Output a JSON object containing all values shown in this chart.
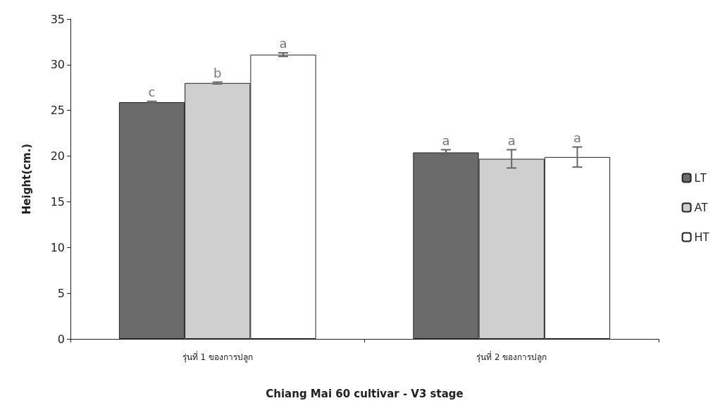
{
  "chart_data": {
    "type": "bar",
    "xlabel": "Chiang Mai 60 cultivar - V3 stage",
    "ylabel": "Height(cm.)",
    "categories": [
      "รุ่นที่ 1 ของการปลูก",
      "รุ่นที่ 2 ของการปลูก"
    ],
    "series": [
      {
        "name": "LT",
        "color": "#6b6b6b",
        "values": [
          25.9,
          20.4
        ],
        "errors": [
          0.1,
          0.3
        ],
        "value_labels": [
          "c",
          "a"
        ]
      },
      {
        "name": "AT",
        "color": "#cfcfcf",
        "values": [
          28.0,
          19.7
        ],
        "errors": [
          0.1,
          1.0
        ],
        "value_labels": [
          "b",
          "a"
        ]
      },
      {
        "name": "HT",
        "color": "#ffffff",
        "values": [
          31.1,
          19.9
        ],
        "errors": [
          0.2,
          1.1
        ],
        "value_labels": [
          "a",
          "a"
        ]
      }
    ],
    "ylim": [
      0,
      35
    ],
    "yticks": [
      0,
      5,
      10,
      15,
      20,
      25,
      30,
      35
    ],
    "grid": false,
    "legend": "right"
  }
}
